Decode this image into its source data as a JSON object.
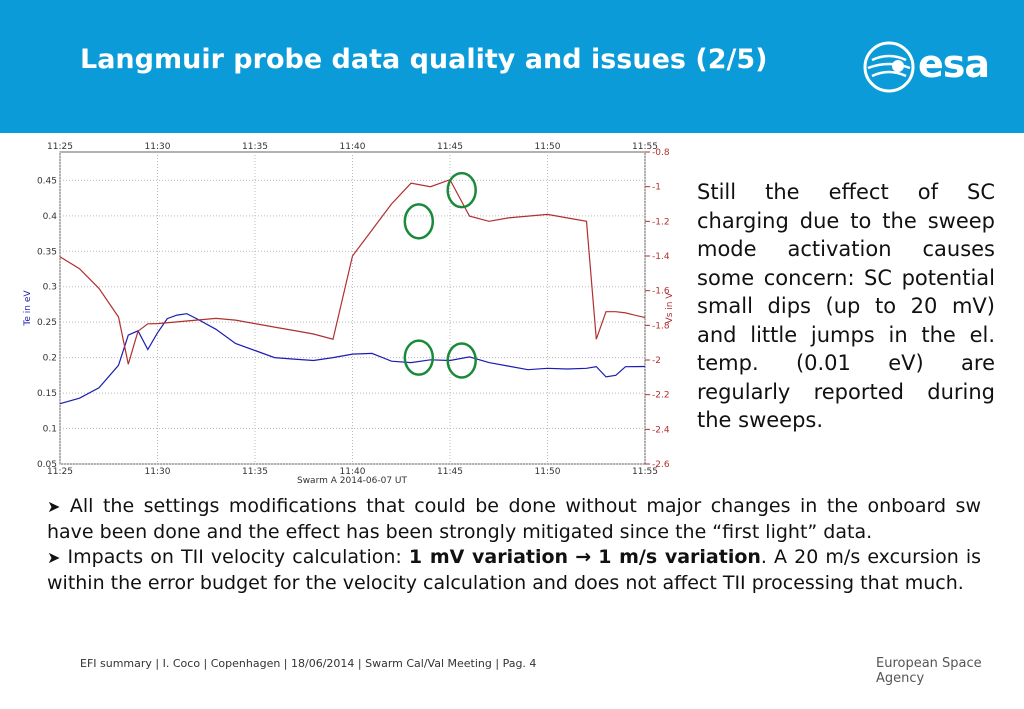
{
  "slide": {
    "title": "Langmuir probe data quality and issues (2/5)",
    "logo_text": "esa",
    "side_text": "Still the effect of SC charging due to the sweep mode activation causes some concern: SC potential small dips (up to 20 mV) and little jumps in the el. temp. (0.01 eV) are regularly reported during the sweeps.",
    "bullet1": "All the settings modifications that could be done without major changes in the onboard sw have been done and the effect has been strongly mitigated since the “first light” data.",
    "bullet2_pre": "Impacts on TII velocity calculation: ",
    "bullet2_bold1": "1 mV variation",
    "bullet2_bold2": "1 m/s variation",
    "bullet2_post": ". A 20 m/s excursion is within the error budget for the velocity calculation and does not affect TII processing that much.",
    "footer": "EFI summary | I. Coco | Copenhagen | 18/06/2014 | Swarm Cal/Val Meeting | Pag. 4",
    "agency": "European Space Agency"
  },
  "colors": {
    "header": "#0a9bd8",
    "te_series": "#1c1cb4",
    "vs_series": "#b03030",
    "marker": "#1a8a3a"
  },
  "chart_data": {
    "type": "line",
    "title": "",
    "xlabel": "Swarm A 2014-06-07 UT",
    "ylabel_left": "Te in eV",
    "ylabel_right": "Vs in V",
    "x_ticks": [
      "11:25",
      "11:30",
      "11:35",
      "11:40",
      "11:45",
      "11:50",
      "11:55"
    ],
    "y_left_ticks": [
      "0.05",
      "0.1",
      "0.15",
      "0.2",
      "0.25",
      "0.3",
      "0.35",
      "0.4",
      "0.45"
    ],
    "y_right_ticks": [
      "-2.6",
      "-2.4",
      "-2.2",
      "-2",
      "-1.8",
      "-1.6",
      "-1.4",
      "-1.2",
      "-1",
      "-0.8"
    ],
    "xlim_minutes": [
      0,
      30
    ],
    "ylim_left": [
      0.05,
      0.49
    ],
    "ylim_right": [
      -2.6,
      -0.8
    ],
    "grid": true,
    "series": [
      {
        "axis": "left",
        "x": [
          0,
          1,
          2,
          3,
          3.5,
          4,
          4.5,
          5,
          5.5,
          6,
          6.5,
          7,
          8,
          9,
          10,
          11,
          12,
          13,
          14,
          15,
          16,
          17,
          18,
          19,
          20,
          21,
          22,
          23,
          24,
          25,
          26,
          27,
          27.5,
          28,
          28.5,
          29,
          30
        ],
        "y": [
          0.135,
          0.15,
          0.165,
          0.19,
          0.225,
          0.23,
          0.21,
          0.235,
          0.255,
          0.26,
          0.262,
          0.255,
          0.24,
          0.22,
          0.21,
          0.2,
          0.198,
          0.196,
          0.2,
          0.205,
          0.206,
          0.195,
          0.193,
          0.197,
          0.196,
          0.201,
          0.193,
          0.188,
          0.183,
          0.185,
          0.184,
          0.185,
          0.195,
          0.18,
          0.175,
          0.18,
          0.18
        ]
      },
      {
        "axis": "right",
        "x": [
          0,
          1,
          2,
          3,
          3.5,
          4,
          4.5,
          5,
          6,
          7,
          8,
          9,
          10,
          11,
          12,
          13,
          14,
          15,
          16,
          17,
          18,
          19,
          20,
          21,
          22,
          23,
          24,
          25,
          26,
          27,
          27.5,
          28,
          28.5,
          29,
          30
        ],
        "y": [
          -1.4,
          -1.5,
          -1.62,
          -1.76,
          -2.0,
          -1.8,
          -1.78,
          -1.79,
          -1.78,
          -1.77,
          -1.76,
          -1.77,
          -1.79,
          -1.81,
          -1.83,
          -1.85,
          -1.88,
          -1.4,
          -1.25,
          -1.1,
          -0.98,
          -1.0,
          -0.96,
          -1.17,
          -1.2,
          -1.18,
          -1.17,
          -1.16,
          -1.18,
          -1.2,
          -1.85,
          -1.72,
          -1.75,
          -1.76,
          -1.76
        ]
      }
    ],
    "annotations": [
      {
        "shape": "circle",
        "x": 18.4,
        "axis": "right",
        "y": -1.2
      },
      {
        "shape": "circle",
        "x": 20.6,
        "axis": "right",
        "y": -1.02
      },
      {
        "shape": "circle",
        "x": 18.4,
        "axis": "left",
        "y": 0.2
      },
      {
        "shape": "circle",
        "x": 20.6,
        "axis": "left",
        "y": 0.196
      }
    ]
  }
}
